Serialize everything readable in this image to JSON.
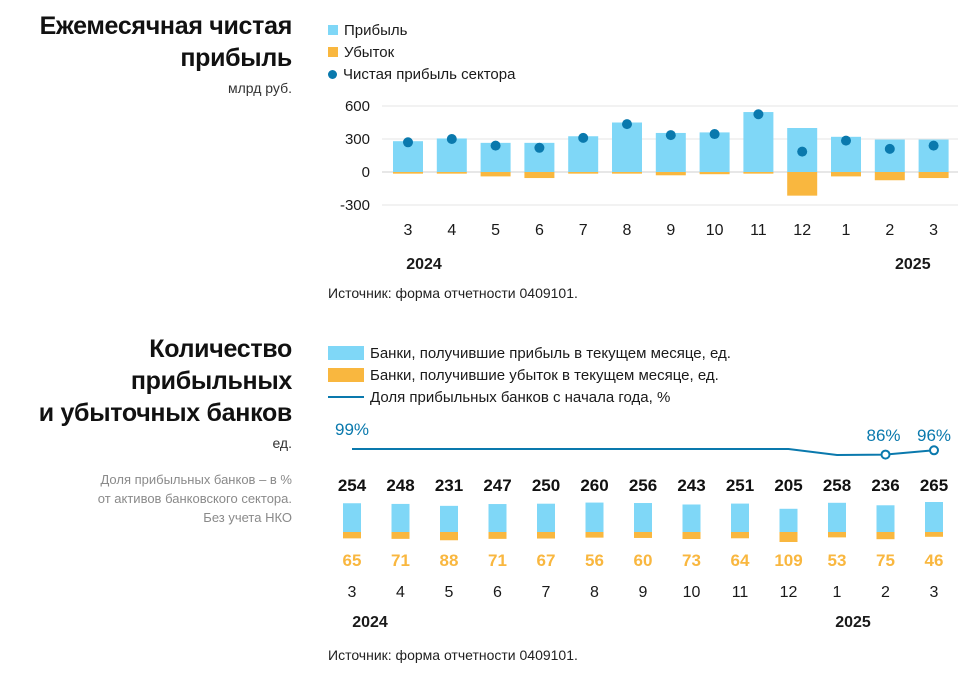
{
  "chart1": {
    "title_lines": [
      "Ежемесячная чистая",
      "прибыль"
    ],
    "unit": "млрд руб.",
    "legend": [
      "Прибыль",
      "Убыток",
      "Чистая прибыль сектора"
    ],
    "source": "Источник: форма отчетности 0409101.",
    "colors": {
      "profit": "#7fd7f7",
      "loss": "#f9b73f",
      "net": "#0a79ad"
    }
  },
  "chart2": {
    "title_lines": [
      "Количество",
      "прибыльных",
      "и убыточных банков"
    ],
    "unit": "ед.",
    "note_lines": [
      "Доля прибыльных банков – в %",
      "от активов банковского сектора.",
      "Без учета НКО"
    ],
    "legend": [
      "Банки, получившие прибыль в текущем месяце, ед.",
      "Банки, получившие убыток в текущем месяце, ед.",
      "Доля прибыльных банков с начала года, %"
    ],
    "source": "Источник: форма отчетности 0409101.",
    "colors": {
      "profit": "#7fd7f7",
      "loss": "#f9b73f",
      "share": "#0a79ad"
    }
  },
  "chart_data": [
    {
      "type": "bar",
      "title": "Ежемесячная чистая прибыль",
      "ylabel": "млрд руб.",
      "categories": [
        "3",
        "4",
        "5",
        "6",
        "7",
        "8",
        "9",
        "10",
        "11",
        "12",
        "1",
        "2",
        "3"
      ],
      "year_labels": [
        {
          "label": "2024",
          "at_index": 0
        },
        {
          "label": "2025",
          "at_index": 11
        }
      ],
      "yticks": [
        600,
        300,
        0,
        -300
      ],
      "ylim": [
        -300,
        600
      ],
      "series": [
        {
          "name": "Прибыль",
          "values": [
            280,
            305,
            265,
            265,
            325,
            450,
            355,
            360,
            545,
            400,
            320,
            295,
            295
          ]
        },
        {
          "name": "Убыток",
          "values": [
            -15,
            -15,
            -40,
            -55,
            -15,
            -15,
            -30,
            -20,
            -15,
            -215,
            -40,
            -75,
            -55
          ]
        },
        {
          "name": "Чистая прибыль сектора",
          "values": [
            270,
            300,
            240,
            220,
            310,
            435,
            335,
            345,
            525,
            185,
            285,
            210,
            240
          ]
        }
      ]
    },
    {
      "type": "bar",
      "title": "Количество прибыльных и убыточных банков",
      "ylabel": "ед.",
      "categories": [
        "3",
        "4",
        "5",
        "6",
        "7",
        "8",
        "9",
        "10",
        "11",
        "12",
        "1",
        "2",
        "3"
      ],
      "year_labels": [
        {
          "label": "2024",
          "at_index": 0
        },
        {
          "label": "2025",
          "at_index": 10
        }
      ],
      "series": [
        {
          "name": "Банки, получившие прибыль в текущем месяце, ед.",
          "values": [
            254,
            248,
            231,
            247,
            250,
            260,
            256,
            243,
            251,
            205,
            258,
            236,
            265
          ]
        },
        {
          "name": "Банки, получившие убыток в текущем месяце, ед.",
          "values": [
            65,
            71,
            88,
            71,
            67,
            56,
            60,
            73,
            64,
            109,
            53,
            75,
            46
          ]
        },
        {
          "name": "Доля прибыльных банков с начала года, %",
          "values": [
            99,
            99,
            99,
            99,
            99,
            99,
            99,
            99,
            99,
            99,
            85,
            86,
            96
          ],
          "labels": [
            {
              "index": 0,
              "text": "99%"
            },
            {
              "index": 11,
              "text": "86%"
            },
            {
              "index": 12,
              "text": "96%"
            }
          ]
        }
      ]
    }
  ]
}
